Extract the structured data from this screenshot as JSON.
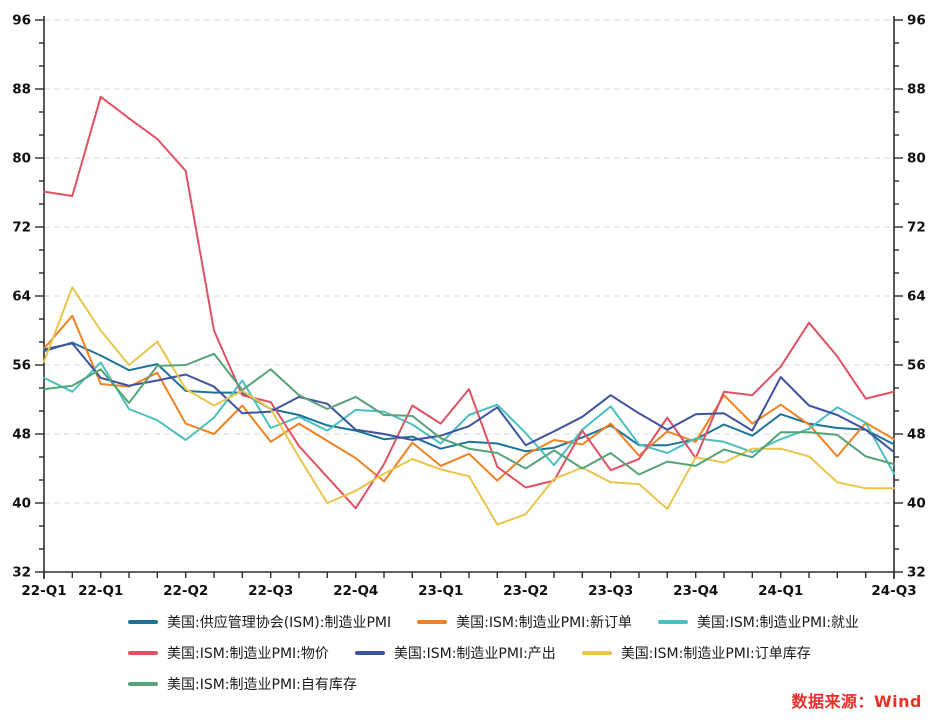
{
  "chart_data": {
    "type": "line",
    "title": "",
    "xlabel": "",
    "ylabel": "",
    "x_unit": "month (Jan-2022 .. Jul-2024)",
    "n_points": 31,
    "ylim": [
      32,
      96
    ],
    "y_ticks": [
      32,
      40,
      48,
      56,
      64,
      72,
      80,
      88,
      96
    ],
    "y_minor_ticks_between_major": 2,
    "grid": "horizontal dashed at major y ticks",
    "legend_position": "bottom-left",
    "x_tick_labels": [
      "22-Q1",
      "22-Q1",
      "22-Q2",
      "22-Q3",
      "22-Q4",
      "23-Q1",
      "23-Q2",
      "23-Q3",
      "23-Q4",
      "24-Q1",
      "24-Q3"
    ],
    "x_tick_label_indices": [
      0,
      2,
      5,
      8,
      11,
      14,
      17,
      20,
      23,
      26,
      30
    ],
    "series": [
      {
        "name": "美国:供应管理协会(ISM):制造业PMI",
        "color": "#1c7499",
        "values": [
          57.6,
          58.6,
          57.1,
          55.4,
          56.1,
          53.0,
          52.8,
          52.8,
          50.9,
          50.2,
          49.0,
          48.4,
          47.4,
          47.7,
          46.3,
          47.1,
          46.9,
          46.0,
          46.4,
          47.6,
          49.0,
          46.7,
          46.7,
          47.4,
          49.1,
          47.8,
          50.3,
          49.2,
          48.7,
          48.5,
          46.8
        ]
      },
      {
        "name": "美国:ISM:制造业PMI:新订单",
        "color": "#f08223",
        "values": [
          57.9,
          61.7,
          53.8,
          53.5,
          55.1,
          49.2,
          48.0,
          51.3,
          47.1,
          49.2,
          47.2,
          45.2,
          42.5,
          47.0,
          44.3,
          45.7,
          42.6,
          45.6,
          47.3,
          46.8,
          49.2,
          45.5,
          48.3,
          47.1,
          52.5,
          49.2,
          51.4,
          49.1,
          45.4,
          49.3,
          47.4
        ]
      },
      {
        "name": "美国:ISM:制造业PMI:就业",
        "color": "#4cbfbf",
        "values": [
          54.5,
          52.9,
          56.3,
          50.9,
          49.6,
          47.3,
          49.9,
          54.2,
          48.7,
          50.0,
          48.4,
          50.8,
          50.6,
          49.1,
          46.9,
          50.2,
          51.4,
          48.1,
          44.4,
          48.5,
          51.2,
          46.8,
          45.8,
          47.5,
          47.1,
          45.9,
          47.4,
          48.6,
          51.1,
          49.3,
          43.4
        ]
      },
      {
        "name": "美国:ISM:制造业PMI:物价",
        "color": "#e05263",
        "values": [
          76.1,
          75.6,
          87.1,
          84.6,
          82.2,
          78.5,
          60.0,
          52.5,
          51.7,
          46.6,
          43.0,
          39.4,
          44.5,
          51.3,
          49.2,
          53.2,
          44.2,
          41.8,
          42.6,
          48.4,
          43.8,
          45.1,
          49.9,
          45.2,
          52.9,
          52.5,
          55.8,
          60.9,
          57.0,
          52.1,
          52.9
        ]
      },
      {
        "name": "美国:ISM:制造业PMI:产出",
        "color": "#3e53a0",
        "values": [
          57.8,
          58.5,
          54.5,
          53.6,
          54.2,
          54.9,
          53.5,
          50.4,
          50.6,
          52.3,
          51.5,
          48.5,
          48.0,
          47.3,
          47.8,
          48.9,
          51.1,
          46.7,
          48.3,
          50.0,
          52.5,
          50.4,
          48.5,
          50.3,
          50.4,
          48.4,
          54.6,
          51.3,
          50.2,
          48.5,
          45.9
        ]
      },
      {
        "name": "美国:ISM:制造业PMI:订单库存",
        "color": "#e9c64b",
        "values": [
          56.4,
          65.0,
          60.0,
          56.0,
          58.7,
          53.2,
          51.3,
          53.0,
          50.9,
          45.3,
          40.0,
          41.4,
          43.4,
          45.1,
          43.9,
          43.1,
          37.5,
          38.7,
          42.8,
          44.1,
          42.4,
          42.2,
          39.3,
          45.3,
          44.7,
          46.3,
          46.3,
          45.4,
          42.4,
          41.7,
          41.7
        ]
      },
      {
        "name": "美国:ISM:制造业PMI:自有库存",
        "color": "#55a376",
        "values": [
          53.2,
          53.6,
          55.5,
          51.6,
          55.9,
          56.0,
          57.3,
          53.1,
          55.5,
          52.5,
          50.9,
          52.3,
          50.2,
          50.1,
          47.5,
          46.3,
          45.8,
          44.0,
          46.1,
          44.0,
          45.8,
          43.3,
          44.8,
          44.3,
          46.2,
          45.3,
          48.2,
          48.2,
          47.9,
          45.4,
          44.5
        ]
      }
    ]
  },
  "legend": {
    "rows": [
      [
        0,
        1,
        2
      ],
      [
        3,
        4,
        5
      ],
      [
        6
      ]
    ]
  },
  "source": {
    "label": "数据来源：Wind",
    "color": "#e8312a"
  },
  "colors": {
    "axis": "#2e2e2e",
    "grid": "#d9d9d9",
    "text": "#111111"
  }
}
